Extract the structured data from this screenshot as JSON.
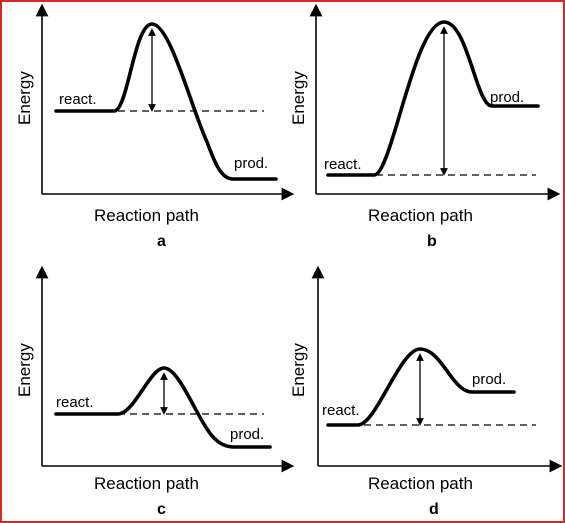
{
  "panels": [
    {
      "letter": "a",
      "ylabel": "Energy",
      "xlabel": "Reaction path",
      "react_label": "react.",
      "prod_label": "prod."
    },
    {
      "letter": "b",
      "ylabel": "Energy",
      "xlabel": "Reaction path",
      "react_label": "react.",
      "prod_label": "prod."
    },
    {
      "letter": "c",
      "ylabel": "Energy",
      "xlabel": "Reaction path",
      "react_label": "react.",
      "prod_label": "prod."
    },
    {
      "letter": "d",
      "ylabel": "Energy",
      "xlabel": "Reaction path",
      "react_label": "react.",
      "prod_label": "prod."
    }
  ],
  "colors": {
    "frame_border": "#d22a2a",
    "ink": "#000000"
  }
}
